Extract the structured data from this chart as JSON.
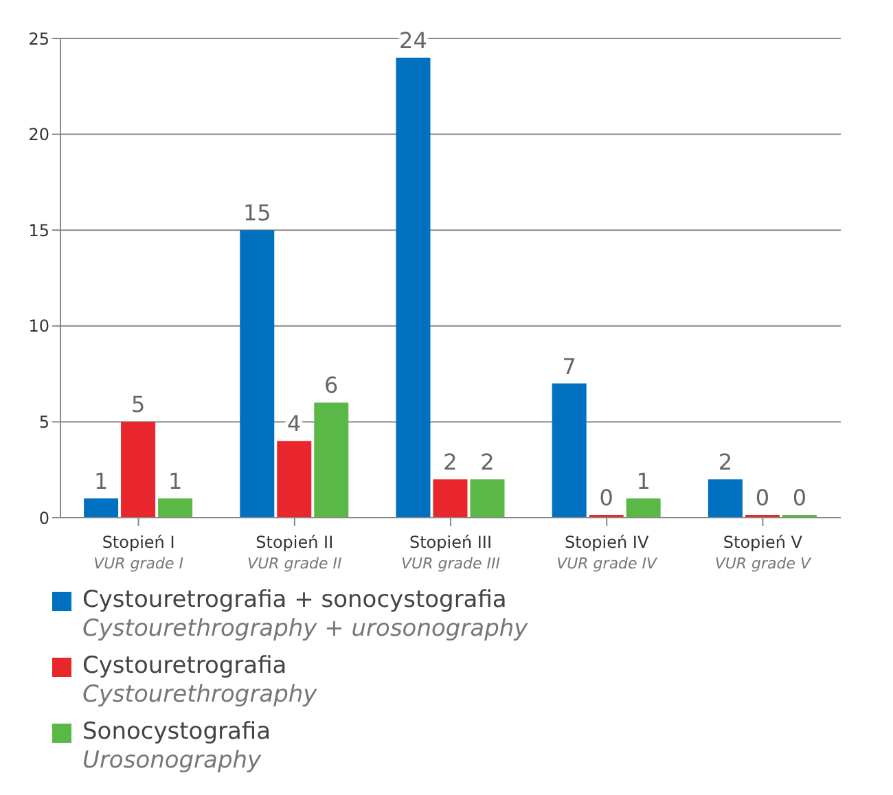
{
  "chart_data": {
    "type": "bar",
    "categories": [
      "Stopień I\nVUR grade I",
      "Stopień II\nVUR grade II",
      "Stopień III\nVUR grade III",
      "Stopień IV\nVUR grade IV",
      "Stopień V\nVUR grade V"
    ],
    "series": [
      {
        "name": "Cystouretrografia + sonocystografia\nCystourethrography + urosonography",
        "color": "#0070c0",
        "values": [
          1,
          15,
          24,
          7,
          2
        ]
      },
      {
        "name": "Cystouretrografia\nCystourethrography",
        "color": "#e8262b",
        "values": [
          5,
          4,
          2,
          0,
          0
        ]
      },
      {
        "name": "Sonocystografia\nUrosonography",
        "color": "#5ab946",
        "values": [
          1,
          6,
          2,
          1,
          0
        ]
      }
    ],
    "ylim": [
      0,
      25
    ],
    "yticks": [
      0,
      5,
      10,
      15,
      20,
      25
    ],
    "grid": "y",
    "data_labels": true,
    "legend": "bottom left"
  }
}
